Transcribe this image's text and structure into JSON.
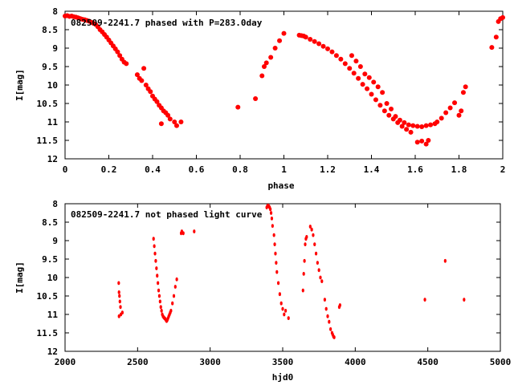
{
  "colors": {
    "point": "#ff0000",
    "axis": "#000000",
    "background": "#ffffff"
  },
  "chart_data": [
    {
      "type": "scatter",
      "title": "082509-2241.7 phased with P=283.0day",
      "xlabel": "phase",
      "ylabel": "I[mag]",
      "xlim": [
        0,
        2
      ],
      "ylim": [
        12,
        8
      ],
      "y_inverted": true,
      "marker": "filled-circle",
      "xticks": [
        "0",
        "0.2",
        "0.4",
        "0.6",
        "0.8",
        "1",
        "1.2",
        "1.4",
        "1.6",
        "1.8",
        "2"
      ],
      "yticks": [
        "8",
        "8.5",
        "9",
        "9.5",
        "10",
        "10.5",
        "11",
        "11.5",
        "12"
      ],
      "series": [
        {
          "points": [
            [
              0.0,
              8.13
            ],
            [
              0.01,
              8.12
            ],
            [
              0.02,
              8.14
            ],
            [
              0.03,
              8.13
            ],
            [
              0.04,
              8.15
            ],
            [
              0.05,
              8.16
            ],
            [
              0.06,
              8.18
            ],
            [
              0.07,
              8.2
            ],
            [
              0.08,
              8.22
            ],
            [
              0.09,
              8.23
            ],
            [
              0.1,
              8.25
            ],
            [
              0.11,
              8.27
            ],
            [
              0.12,
              8.3
            ],
            [
              0.13,
              8.33
            ],
            [
              0.14,
              8.36
            ],
            [
              0.15,
              8.42
            ],
            [
              0.16,
              8.5
            ],
            [
              0.17,
              8.56
            ],
            [
              0.18,
              8.63
            ],
            [
              0.19,
              8.7
            ],
            [
              0.2,
              8.78
            ],
            [
              0.21,
              8.86
            ],
            [
              0.22,
              8.94
            ],
            [
              0.23,
              9.02
            ],
            [
              0.24,
              9.1
            ],
            [
              0.25,
              9.2
            ],
            [
              0.26,
              9.3
            ],
            [
              0.27,
              9.38
            ],
            [
              0.28,
              9.42
            ],
            [
              0.33,
              9.72
            ],
            [
              0.34,
              9.82
            ],
            [
              0.35,
              9.88
            ],
            [
              0.36,
              9.55
            ],
            [
              0.37,
              10.0
            ],
            [
              0.38,
              10.1
            ],
            [
              0.39,
              10.18
            ],
            [
              0.4,
              10.3
            ],
            [
              0.41,
              10.38
            ],
            [
              0.42,
              10.45
            ],
            [
              0.43,
              10.55
            ],
            [
              0.44,
              10.62
            ],
            [
              0.45,
              10.7
            ],
            [
              0.46,
              10.75
            ],
            [
              0.47,
              10.82
            ],
            [
              0.44,
              11.05
            ],
            [
              0.48,
              10.92
            ],
            [
              0.5,
              11.0
            ],
            [
              0.51,
              11.1
            ],
            [
              0.53,
              11.0
            ],
            [
              0.79,
              10.6
            ],
            [
              0.87,
              10.37
            ],
            [
              0.9,
              9.75
            ],
            [
              0.91,
              9.5
            ],
            [
              0.92,
              9.4
            ],
            [
              0.94,
              9.25
            ],
            [
              0.96,
              9.0
            ],
            [
              0.98,
              8.8
            ],
            [
              1.0,
              8.6
            ],
            [
              1.07,
              8.65
            ],
            [
              1.08,
              8.66
            ],
            [
              1.09,
              8.67
            ],
            [
              1.1,
              8.7
            ],
            [
              1.12,
              8.76
            ],
            [
              1.14,
              8.82
            ],
            [
              1.16,
              8.88
            ],
            [
              1.18,
              8.95
            ],
            [
              1.2,
              9.02
            ],
            [
              1.22,
              9.1
            ],
            [
              1.24,
              9.2
            ],
            [
              1.26,
              9.3
            ],
            [
              1.28,
              9.42
            ],
            [
              1.3,
              9.55
            ],
            [
              1.32,
              9.68
            ],
            [
              1.34,
              9.82
            ],
            [
              1.36,
              9.98
            ],
            [
              1.38,
              10.1
            ],
            [
              1.4,
              10.25
            ],
            [
              1.42,
              10.4
            ],
            [
              1.44,
              10.55
            ],
            [
              1.46,
              10.7
            ],
            [
              1.48,
              10.82
            ],
            [
              1.5,
              10.92
            ],
            [
              1.52,
              11.02
            ],
            [
              1.54,
              11.12
            ],
            [
              1.56,
              11.2
            ],
            [
              1.58,
              11.28
            ],
            [
              1.31,
              9.2
            ],
            [
              1.33,
              9.35
            ],
            [
              1.35,
              9.5
            ],
            [
              1.37,
              9.7
            ],
            [
              1.39,
              9.8
            ],
            [
              1.41,
              9.92
            ],
            [
              1.43,
              10.05
            ],
            [
              1.45,
              10.2
            ],
            [
              1.47,
              10.5
            ],
            [
              1.49,
              10.65
            ],
            [
              1.51,
              10.85
            ],
            [
              1.53,
              10.95
            ],
            [
              1.55,
              11.02
            ],
            [
              1.57,
              11.08
            ],
            [
              1.59,
              11.1
            ],
            [
              1.61,
              11.12
            ],
            [
              1.63,
              11.13
            ],
            [
              1.65,
              11.1
            ],
            [
              1.67,
              11.08
            ],
            [
              1.69,
              11.05
            ],
            [
              1.61,
              11.55
            ],
            [
              1.63,
              11.52
            ],
            [
              1.65,
              11.6
            ],
            [
              1.66,
              11.5
            ],
            [
              1.7,
              11.0
            ],
            [
              1.72,
              10.9
            ],
            [
              1.74,
              10.75
            ],
            [
              1.76,
              10.62
            ],
            [
              1.78,
              10.48
            ],
            [
              1.8,
              10.82
            ],
            [
              1.81,
              10.7
            ],
            [
              1.82,
              10.2
            ],
            [
              1.83,
              10.05
            ],
            [
              1.95,
              8.98
            ],
            [
              1.97,
              8.7
            ],
            [
              1.98,
              8.28
            ],
            [
              1.99,
              8.2
            ],
            [
              2.0,
              8.17
            ]
          ]
        }
      ]
    },
    {
      "type": "scatter",
      "title": "082509-2241.7 not phased light curve",
      "xlabel": "hjd0",
      "ylabel": "I[mag]",
      "xlim": [
        2000,
        5000
      ],
      "ylim": [
        12,
        8
      ],
      "y_inverted": true,
      "marker": "small-diamond",
      "xticks": [
        "2000",
        "2500",
        "3000",
        "3500",
        "4000",
        "4500",
        "5000"
      ],
      "yticks": [
        "8",
        "8.5",
        "9",
        "9.5",
        "10",
        "10.5",
        "11",
        "11.5",
        "12"
      ],
      "series": [
        {
          "points": [
            [
              2370,
              10.15
            ],
            [
              2372,
              10.4
            ],
            [
              2375,
              10.5
            ],
            [
              2378,
              10.65
            ],
            [
              2382,
              10.8
            ],
            [
              2385,
              11.0
            ],
            [
              2395,
              10.95
            ],
            [
              2372,
              11.05
            ],
            [
              2610,
              8.95
            ],
            [
              2615,
              9.15
            ],
            [
              2620,
              9.35
            ],
            [
              2625,
              9.55
            ],
            [
              2630,
              9.75
            ],
            [
              2635,
              9.95
            ],
            [
              2640,
              10.15
            ],
            [
              2645,
              10.35
            ],
            [
              2650,
              10.5
            ],
            [
              2655,
              10.65
            ],
            [
              2660,
              10.8
            ],
            [
              2665,
              10.9
            ],
            [
              2670,
              11.0
            ],
            [
              2675,
              11.05
            ],
            [
              2680,
              11.08
            ],
            [
              2685,
              11.1
            ],
            [
              2690,
              11.12
            ],
            [
              2695,
              11.15
            ],
            [
              2700,
              11.18
            ],
            [
              2705,
              11.15
            ],
            [
              2710,
              11.1
            ],
            [
              2715,
              11.05
            ],
            [
              2720,
              11.0
            ],
            [
              2725,
              10.95
            ],
            [
              2730,
              10.9
            ],
            [
              2740,
              10.7
            ],
            [
              2750,
              10.5
            ],
            [
              2760,
              10.25
            ],
            [
              2770,
              10.05
            ],
            [
              2800,
              8.8
            ],
            [
              2805,
              8.75
            ],
            [
              2815,
              8.8
            ],
            [
              2890,
              8.75
            ],
            [
              3390,
              8.1
            ],
            [
              3395,
              8.06
            ],
            [
              3400,
              8.05
            ],
            [
              3405,
              8.07
            ],
            [
              3410,
              8.1
            ],
            [
              3415,
              8.15
            ],
            [
              3420,
              8.25
            ],
            [
              3425,
              8.4
            ],
            [
              3430,
              8.6
            ],
            [
              3440,
              8.85
            ],
            [
              3445,
              9.1
            ],
            [
              3450,
              9.35
            ],
            [
              3455,
              9.6
            ],
            [
              3460,
              9.85
            ],
            [
              3470,
              10.15
            ],
            [
              3480,
              10.45
            ],
            [
              3490,
              10.7
            ],
            [
              3500,
              10.85
            ],
            [
              3510,
              11.0
            ],
            [
              3520,
              10.9
            ],
            [
              3540,
              11.1
            ],
            [
              3640,
              10.35
            ],
            [
              3645,
              9.9
            ],
            [
              3650,
              9.55
            ],
            [
              3655,
              9.1
            ],
            [
              3660,
              8.95
            ],
            [
              3665,
              8.9
            ],
            [
              3690,
              8.62
            ],
            [
              3700,
              8.7
            ],
            [
              3710,
              8.85
            ],
            [
              3720,
              9.1
            ],
            [
              3730,
              9.35
            ],
            [
              3740,
              9.6
            ],
            [
              3750,
              9.8
            ],
            [
              3760,
              10.0
            ],
            [
              3770,
              10.1
            ],
            [
              3790,
              10.6
            ],
            [
              3800,
              10.85
            ],
            [
              3810,
              11.05
            ],
            [
              3820,
              11.2
            ],
            [
              3830,
              11.4
            ],
            [
              3840,
              11.5
            ],
            [
              3845,
              11.55
            ],
            [
              3850,
              11.6
            ],
            [
              3855,
              11.62
            ],
            [
              3890,
              10.8
            ],
            [
              3895,
              10.75
            ],
            [
              4480,
              10.6
            ],
            [
              4620,
              9.55
            ],
            [
              4750,
              10.6
            ]
          ]
        }
      ]
    }
  ]
}
